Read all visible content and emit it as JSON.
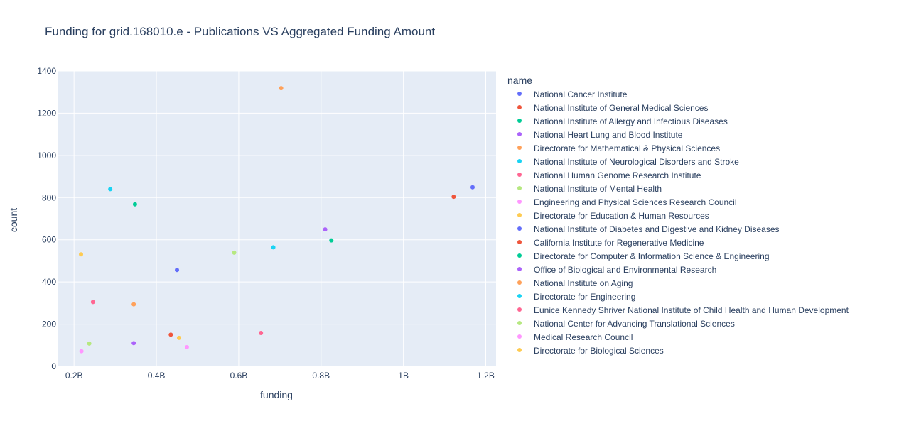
{
  "chart_data": {
    "type": "scatter",
    "title": "Funding for grid.168010.e - Publications VS Aggregated Funding Amount",
    "xlabel": "funding",
    "ylabel": "count",
    "legend_title": "name",
    "legend_position": "right",
    "grid": true,
    "xlim": [
      0.16,
      1.225
    ],
    "ylim": [
      0,
      1400
    ],
    "x_ticks": [
      0.2,
      0.4,
      0.6,
      0.8,
      1.0,
      1.2
    ],
    "x_tick_labels": [
      "0.2B",
      "0.4B",
      "0.6B",
      "0.8B",
      "1B",
      "1.2B"
    ],
    "y_ticks": [
      0,
      200,
      400,
      600,
      800,
      1000,
      1200,
      1400
    ],
    "y_tick_labels": [
      "0",
      "200",
      "400",
      "600",
      "800",
      "1000",
      "1200",
      "1400"
    ],
    "series": [
      {
        "name": "National Cancer Institute",
        "color": "#636efa",
        "points": [
          {
            "x": 1.168,
            "y": 849
          },
          {
            "x": 0.45,
            "y": 457
          }
        ]
      },
      {
        "name": "National Institute of General Medical Sciences",
        "color": "#EF553B",
        "points": [
          {
            "x": 1.122,
            "y": 804
          },
          {
            "x": 0.435,
            "y": 150
          }
        ]
      },
      {
        "name": "National Institute of Allergy and Infectious Diseases",
        "color": "#00cc96",
        "points": [
          {
            "x": 0.825,
            "y": 597
          },
          {
            "x": 0.348,
            "y": 768
          }
        ]
      },
      {
        "name": "National Heart Lung and Blood Institute",
        "color": "#ab63fa",
        "points": [
          {
            "x": 0.81,
            "y": 649
          },
          {
            "x": 0.345,
            "y": 110
          }
        ]
      },
      {
        "name": "Directorate for Mathematical & Physical Sciences",
        "color": "#FFA15A",
        "points": [
          {
            "x": 0.703,
            "y": 1319
          },
          {
            "x": 0.345,
            "y": 294
          }
        ]
      },
      {
        "name": "National Institute of Neurological Disorders and Stroke",
        "color": "#19d3f3",
        "points": [
          {
            "x": 0.684,
            "y": 564
          },
          {
            "x": 0.288,
            "y": 840
          }
        ]
      },
      {
        "name": "National Human Genome Research Institute",
        "color": "#FF6692",
        "points": [
          {
            "x": 0.654,
            "y": 158
          },
          {
            "x": 0.246,
            "y": 305
          }
        ]
      },
      {
        "name": "National Institute of Mental Health",
        "color": "#B6E880",
        "points": [
          {
            "x": 0.589,
            "y": 539
          },
          {
            "x": 0.237,
            "y": 108
          }
        ]
      },
      {
        "name": "Engineering and Physical Sciences Research Council",
        "color": "#FF97FF",
        "points": [
          {
            "x": 0.474,
            "y": 91
          },
          {
            "x": 0.218,
            "y": 72
          }
        ]
      },
      {
        "name": "Directorate for Education & Human Resources",
        "color": "#FECB52",
        "points": [
          {
            "x": 0.455,
            "y": 135
          },
          {
            "x": 0.217,
            "y": 531
          }
        ]
      }
    ],
    "legend_entries": [
      {
        "name": "National Cancer Institute",
        "color": "#636efa"
      },
      {
        "name": "National Institute of General Medical Sciences",
        "color": "#EF553B"
      },
      {
        "name": "National Institute of Allergy and Infectious Diseases",
        "color": "#00cc96"
      },
      {
        "name": "National Heart Lung and Blood Institute",
        "color": "#ab63fa"
      },
      {
        "name": "Directorate for Mathematical & Physical Sciences",
        "color": "#FFA15A"
      },
      {
        "name": "National Institute of Neurological Disorders and Stroke",
        "color": "#19d3f3"
      },
      {
        "name": "National Human Genome Research Institute",
        "color": "#FF6692"
      },
      {
        "name": "National Institute of Mental Health",
        "color": "#B6E880"
      },
      {
        "name": "Engineering and Physical Sciences Research Council",
        "color": "#FF97FF"
      },
      {
        "name": "Directorate for Education & Human Resources",
        "color": "#FECB52"
      },
      {
        "name": "National Institute of Diabetes and Digestive and Kidney Diseases",
        "color": "#636efa"
      },
      {
        "name": "California Institute for Regenerative Medicine",
        "color": "#EF553B"
      },
      {
        "name": "Directorate for Computer & Information Science & Engineering",
        "color": "#00cc96"
      },
      {
        "name": "Office of Biological and Environmental Research",
        "color": "#ab63fa"
      },
      {
        "name": "National Institute on Aging",
        "color": "#FFA15A"
      },
      {
        "name": "Directorate for Engineering",
        "color": "#19d3f3"
      },
      {
        "name": "Eunice Kennedy Shriver National Institute of Child Health and Human Development",
        "color": "#FF6692"
      },
      {
        "name": "National Center for Advancing Translational Sciences",
        "color": "#B6E880"
      },
      {
        "name": "Medical Research Council",
        "color": "#FF97FF"
      },
      {
        "name": "Directorate for Biological Sciences",
        "color": "#FECB52"
      }
    ],
    "plot_background": "#E5ECF6",
    "grid_color": "#ffffff",
    "text_color": "#2a3f5f"
  }
}
